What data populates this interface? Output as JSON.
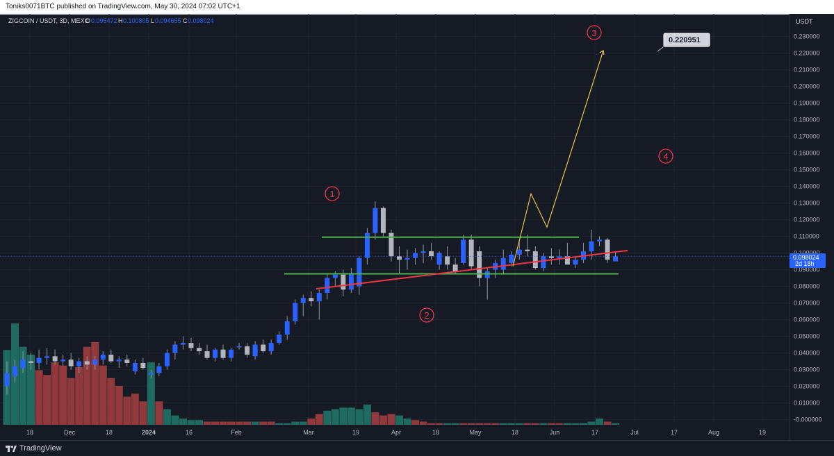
{
  "header": {
    "published_text": "Toniks0071BTC published on TradingView.com, May 30, 2024 07:02 UTC+1"
  },
  "footer": {
    "brand": "TradingView"
  },
  "legend": {
    "symbol": "ZIGCOIN / USDT, 3D, MEXC",
    "open_label": "O",
    "open_value": "0.095472",
    "high_label": "H",
    "high_value": "0.100805",
    "low_label": "L",
    "low_value": "0.094655",
    "close_label": "C",
    "close_value": "0.098024"
  },
  "price_axis": {
    "currency": "USDT",
    "last_price": "0.098024",
    "countdown": "2d 18h"
  },
  "annotations": {
    "target_label": "0.220951",
    "marker_1": "1",
    "marker_2": "2",
    "marker_3": "3",
    "marker_4": "4"
  },
  "colors": {
    "background": "#161a25",
    "bull_candle": "#2962ff",
    "bear_candle": "#b2b5be",
    "vol_up": "#1f6b62",
    "vol_down": "#913a3e",
    "channel": "#4caf50",
    "trendline": "#f23645",
    "projection": "#e8c547",
    "marker": "#f23645"
  },
  "chart_data": {
    "type": "candlestick",
    "timeframe": "3D",
    "x_tick_labels": [
      "18",
      "Dec",
      "18",
      "2024",
      "16",
      "Feb",
      "Mar",
      "19",
      "Apr",
      "18",
      "May",
      "18",
      "Jun",
      "17",
      "Jul",
      "17",
      "Aug",
      "19"
    ],
    "y_tick_labels": [
      "0.230000",
      "0.220000",
      "0.210000",
      "0.200000",
      "0.190000",
      "0.180000",
      "0.170000",
      "0.160000",
      "0.150000",
      "0.140000",
      "0.130000",
      "0.120000",
      "0.110000",
      "0.100000",
      "0.090000",
      "0.080000",
      "0.070000",
      "0.060000",
      "0.050000",
      "0.040000",
      "0.030000",
      "0.020000",
      "0.010000",
      "-0.000000"
    ],
    "ylim": [
      0,
      0.235
    ],
    "candles": [
      {
        "o": 0.02,
        "h": 0.035,
        "l": 0.015,
        "c": 0.028
      },
      {
        "o": 0.026,
        "h": 0.036,
        "l": 0.022,
        "c": 0.032
      },
      {
        "o": 0.031,
        "h": 0.041,
        "l": 0.028,
        "c": 0.036
      },
      {
        "o": 0.035,
        "h": 0.04,
        "l": 0.03,
        "c": 0.034
      },
      {
        "o": 0.034,
        "h": 0.042,
        "l": 0.03,
        "c": 0.037
      },
      {
        "o": 0.037,
        "h": 0.043,
        "l": 0.033,
        "c": 0.038
      },
      {
        "o": 0.038,
        "h": 0.042,
        "l": 0.033,
        "c": 0.035
      },
      {
        "o": 0.035,
        "h": 0.039,
        "l": 0.032,
        "c": 0.036
      },
      {
        "o": 0.036,
        "h": 0.04,
        "l": 0.03,
        "c": 0.032
      },
      {
        "o": 0.032,
        "h": 0.037,
        "l": 0.028,
        "c": 0.035
      },
      {
        "o": 0.035,
        "h": 0.038,
        "l": 0.03,
        "c": 0.033
      },
      {
        "o": 0.033,
        "h": 0.038,
        "l": 0.03,
        "c": 0.036
      },
      {
        "o": 0.036,
        "h": 0.041,
        "l": 0.033,
        "c": 0.039
      },
      {
        "o": 0.039,
        "h": 0.042,
        "l": 0.034,
        "c": 0.035
      },
      {
        "o": 0.035,
        "h": 0.038,
        "l": 0.031,
        "c": 0.036
      },
      {
        "o": 0.036,
        "h": 0.039,
        "l": 0.032,
        "c": 0.034
      },
      {
        "o": 0.029,
        "h": 0.036,
        "l": 0.027,
        "c": 0.034
      },
      {
        "o": 0.034,
        "h": 0.037,
        "l": 0.03,
        "c": 0.031
      },
      {
        "o": 0.027,
        "h": 0.03,
        "l": 0.025,
        "c": 0.028
      },
      {
        "o": 0.028,
        "h": 0.034,
        "l": 0.026,
        "c": 0.032
      },
      {
        "o": 0.032,
        "h": 0.042,
        "l": 0.03,
        "c": 0.04
      },
      {
        "o": 0.04,
        "h": 0.047,
        "l": 0.036,
        "c": 0.045
      },
      {
        "o": 0.045,
        "h": 0.05,
        "l": 0.042,
        "c": 0.046
      },
      {
        "o": 0.046,
        "h": 0.049,
        "l": 0.041,
        "c": 0.043
      },
      {
        "o": 0.043,
        "h": 0.046,
        "l": 0.039,
        "c": 0.041
      },
      {
        "o": 0.041,
        "h": 0.045,
        "l": 0.036,
        "c": 0.037
      },
      {
        "o": 0.037,
        "h": 0.043,
        "l": 0.035,
        "c": 0.042
      },
      {
        "o": 0.042,
        "h": 0.045,
        "l": 0.036,
        "c": 0.037
      },
      {
        "o": 0.037,
        "h": 0.043,
        "l": 0.035,
        "c": 0.042
      },
      {
        "o": 0.044,
        "h": 0.046,
        "l": 0.042,
        "c": 0.044
      },
      {
        "o": 0.044,
        "h": 0.046,
        "l": 0.037,
        "c": 0.039
      },
      {
        "o": 0.038,
        "h": 0.047,
        "l": 0.036,
        "c": 0.045
      },
      {
        "o": 0.045,
        "h": 0.048,
        "l": 0.04,
        "c": 0.041
      },
      {
        "o": 0.041,
        "h": 0.048,
        "l": 0.039,
        "c": 0.046
      },
      {
        "o": 0.046,
        "h": 0.053,
        "l": 0.045,
        "c": 0.051
      },
      {
        "o": 0.051,
        "h": 0.062,
        "l": 0.048,
        "c": 0.059
      },
      {
        "o": 0.059,
        "h": 0.072,
        "l": 0.057,
        "c": 0.07
      },
      {
        "o": 0.07,
        "h": 0.075,
        "l": 0.062,
        "c": 0.073
      },
      {
        "o": 0.073,
        "h": 0.077,
        "l": 0.068,
        "c": 0.071
      },
      {
        "o": 0.071,
        "h": 0.078,
        "l": 0.06,
        "c": 0.076
      },
      {
        "o": 0.076,
        "h": 0.087,
        "l": 0.072,
        "c": 0.085
      },
      {
        "o": 0.085,
        "h": 0.089,
        "l": 0.08,
        "c": 0.087
      },
      {
        "o": 0.087,
        "h": 0.09,
        "l": 0.074,
        "c": 0.078
      },
      {
        "o": 0.078,
        "h": 0.091,
        "l": 0.076,
        "c": 0.088
      },
      {
        "o": 0.08,
        "h": 0.098,
        "l": 0.075,
        "c": 0.097
      },
      {
        "o": 0.097,
        "h": 0.115,
        "l": 0.093,
        "c": 0.112
      },
      {
        "o": 0.112,
        "h": 0.131,
        "l": 0.108,
        "c": 0.127
      },
      {
        "o": 0.127,
        "h": 0.128,
        "l": 0.11,
        "c": 0.112
      },
      {
        "o": 0.112,
        "h": 0.114,
        "l": 0.095,
        "c": 0.098
      },
      {
        "o": 0.098,
        "h": 0.104,
        "l": 0.088,
        "c": 0.096
      },
      {
        "o": 0.096,
        "h": 0.102,
        "l": 0.09,
        "c": 0.097
      },
      {
        "o": 0.097,
        "h": 0.103,
        "l": 0.093,
        "c": 0.1
      },
      {
        "o": 0.1,
        "h": 0.105,
        "l": 0.094,
        "c": 0.101
      },
      {
        "o": 0.101,
        "h": 0.106,
        "l": 0.096,
        "c": 0.098
      },
      {
        "o": 0.093,
        "h": 0.101,
        "l": 0.09,
        "c": 0.1
      },
      {
        "o": 0.098,
        "h": 0.104,
        "l": 0.09,
        "c": 0.093
      },
      {
        "o": 0.093,
        "h": 0.097,
        "l": 0.087,
        "c": 0.089
      },
      {
        "o": 0.094,
        "h": 0.111,
        "l": 0.093,
        "c": 0.108
      },
      {
        "o": 0.108,
        "h": 0.111,
        "l": 0.09,
        "c": 0.092
      },
      {
        "o": 0.101,
        "h": 0.104,
        "l": 0.08,
        "c": 0.085
      },
      {
        "o": 0.085,
        "h": 0.091,
        "l": 0.072,
        "c": 0.089
      },
      {
        "o": 0.09,
        "h": 0.096,
        "l": 0.085,
        "c": 0.094
      },
      {
        "o": 0.09,
        "h": 0.102,
        "l": 0.087,
        "c": 0.097
      },
      {
        "o": 0.094,
        "h": 0.101,
        "l": 0.092,
        "c": 0.099
      },
      {
        "o": 0.099,
        "h": 0.108,
        "l": 0.096,
        "c": 0.102
      },
      {
        "o": 0.102,
        "h": 0.111,
        "l": 0.098,
        "c": 0.101
      },
      {
        "o": 0.101,
        "h": 0.104,
        "l": 0.09,
        "c": 0.091
      },
      {
        "o": 0.091,
        "h": 0.1,
        "l": 0.089,
        "c": 0.098
      },
      {
        "o": 0.098,
        "h": 0.103,
        "l": 0.093,
        "c": 0.097
      },
      {
        "o": 0.097,
        "h": 0.102,
        "l": 0.093,
        "c": 0.098
      },
      {
        "o": 0.098,
        "h": 0.106,
        "l": 0.095,
        "c": 0.093
      },
      {
        "o": 0.093,
        "h": 0.098,
        "l": 0.091,
        "c": 0.096
      },
      {
        "o": 0.096,
        "h": 0.106,
        "l": 0.094,
        "c": 0.101
      },
      {
        "o": 0.101,
        "h": 0.114,
        "l": 0.096,
        "c": 0.107
      },
      {
        "o": 0.107,
        "h": 0.11,
        "l": 0.104,
        "c": 0.108
      },
      {
        "o": 0.108,
        "h": 0.109,
        "l": 0.094,
        "c": 0.096
      },
      {
        "o": 0.095,
        "h": 0.101,
        "l": 0.095,
        "c": 0.098
      }
    ],
    "volume": [
      {
        "v": 0.048,
        "up": true
      },
      {
        "v": 0.065,
        "up": true
      },
      {
        "v": 0.05,
        "up": true
      },
      {
        "v": 0.045,
        "up": true
      },
      {
        "v": 0.035,
        "up": false
      },
      {
        "v": 0.032,
        "up": false
      },
      {
        "v": 0.04,
        "up": false
      },
      {
        "v": 0.038,
        "up": false
      },
      {
        "v": 0.03,
        "up": false
      },
      {
        "v": 0.037,
        "up": false
      },
      {
        "v": 0.05,
        "up": false
      },
      {
        "v": 0.053,
        "up": false
      },
      {
        "v": 0.038,
        "up": false
      },
      {
        "v": 0.03,
        "up": false
      },
      {
        "v": 0.025,
        "up": false
      },
      {
        "v": 0.018,
        "up": false
      },
      {
        "v": 0.02,
        "up": false
      },
      {
        "v": 0.015,
        "up": false
      },
      {
        "v": 0.04,
        "up": true
      },
      {
        "v": 0.015,
        "up": false
      },
      {
        "v": 0.01,
        "up": true
      },
      {
        "v": 0.006,
        "up": true
      },
      {
        "v": 0.004,
        "up": true
      },
      {
        "v": 0.003,
        "up": true
      },
      {
        "v": 0.003,
        "up": true
      },
      {
        "v": 0.002,
        "up": false
      },
      {
        "v": 0.002,
        "up": false
      },
      {
        "v": 0.002,
        "up": false
      },
      {
        "v": 0.002,
        "up": false
      },
      {
        "v": 0.002,
        "up": false
      },
      {
        "v": 0.002,
        "up": false
      },
      {
        "v": 0.002,
        "up": true
      },
      {
        "v": 0.002,
        "up": false
      },
      {
        "v": 0.002,
        "up": false
      },
      {
        "v": 0.001,
        "up": true
      },
      {
        "v": 0.001,
        "up": true
      },
      {
        "v": 0.002,
        "up": true
      },
      {
        "v": 0.002,
        "up": true
      },
      {
        "v": 0.004,
        "up": false
      },
      {
        "v": 0.007,
        "up": false
      },
      {
        "v": 0.009,
        "up": true
      },
      {
        "v": 0.01,
        "up": true
      },
      {
        "v": 0.011,
        "up": true
      },
      {
        "v": 0.011,
        "up": true
      },
      {
        "v": 0.01,
        "up": true
      },
      {
        "v": 0.013,
        "up": true
      },
      {
        "v": 0.008,
        "up": false
      },
      {
        "v": 0.006,
        "up": false
      },
      {
        "v": 0.007,
        "up": false
      },
      {
        "v": 0.006,
        "up": true
      },
      {
        "v": 0.004,
        "up": true
      },
      {
        "v": 0.003,
        "up": false
      },
      {
        "v": 0.002,
        "up": false
      },
      {
        "v": 0.001,
        "up": false
      },
      {
        "v": 0.001,
        "up": false
      },
      {
        "v": 0.001,
        "up": true
      },
      {
        "v": 0.001,
        "up": true
      },
      {
        "v": 0.001,
        "up": false
      },
      {
        "v": 0.001,
        "up": false
      },
      {
        "v": 0.001,
        "up": false
      },
      {
        "v": 0.001,
        "up": false
      },
      {
        "v": 0.001,
        "up": false
      },
      {
        "v": 0.001,
        "up": true
      },
      {
        "v": 0.001,
        "up": true
      },
      {
        "v": 0.001,
        "up": true
      },
      {
        "v": 0.001,
        "up": false
      },
      {
        "v": 0.001,
        "up": false
      },
      {
        "v": 0.001,
        "up": true
      },
      {
        "v": 0.001,
        "up": false
      },
      {
        "v": 0.001,
        "up": false
      },
      {
        "v": 0.001,
        "up": true
      },
      {
        "v": 0.001,
        "up": true
      },
      {
        "v": 0.001,
        "up": true
      },
      {
        "v": 0.002,
        "up": true
      },
      {
        "v": 0.004,
        "up": true
      },
      {
        "v": 0.002,
        "up": false
      },
      {
        "v": 0.001,
        "up": true
      }
    ],
    "channel_top": 0.1095,
    "channel_bottom": 0.0875,
    "trendline": [
      0.0785,
      0.1015
    ],
    "projection_path": [
      0.092,
      0.1355,
      0.1155,
      0.2215
    ],
    "last_price": 0.098024
  }
}
